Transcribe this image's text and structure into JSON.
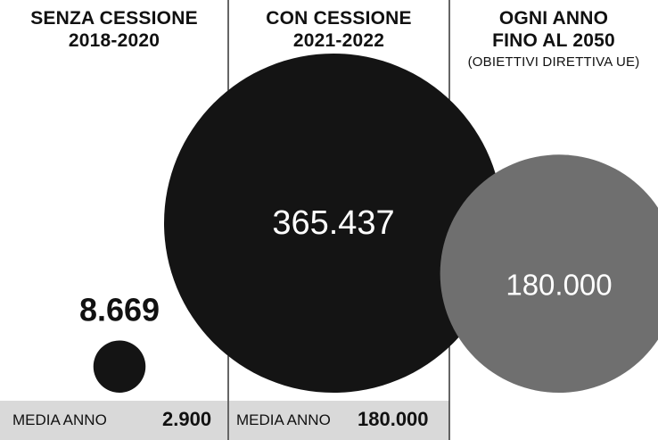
{
  "columns": [
    {
      "header_lines": [
        "SENZA CESSIONE",
        "2018-2020"
      ],
      "note": "",
      "footer_label": "MEDIA ANNO",
      "footer_value": "2.900"
    },
    {
      "header_lines": [
        "CON CESSIONE",
        "2021-2022"
      ],
      "note": "",
      "footer_label": "MEDIA ANNO",
      "footer_value": "180.000"
    },
    {
      "header_lines": [
        "OGNI ANNO",
        "FINO AL 2050"
      ],
      "note": "(OBIETTIVI DIRETTIVA UE)",
      "footer_label": "",
      "footer_value": ""
    }
  ],
  "colors": {
    "bubble_dark": "#141414",
    "bubble_grey": "#6f6f6f",
    "footer_bg": "#d9d9d9",
    "divider": "#333333",
    "text": "#111111"
  },
  "chart_data": {
    "type": "bubble",
    "categories": [
      "SENZA CESSIONE 2018-2020",
      "CON CESSIONE 2021-2022",
      "OGNI ANNO FINO AL 2050"
    ],
    "values": [
      8669,
      365437,
      180000
    ],
    "value_labels": [
      "8.669",
      "365.437",
      "180.000"
    ],
    "averages": [
      {
        "label": "MEDIA ANNO",
        "value": 2900,
        "display": "2.900"
      },
      {
        "label": "MEDIA ANNO",
        "value": 180000,
        "display": "180.000"
      }
    ],
    "note": "(OBIETTIVI DIRETTIVA UE)",
    "title": "",
    "xlabel": "",
    "ylabel": "",
    "grid": false,
    "legend": "none"
  }
}
